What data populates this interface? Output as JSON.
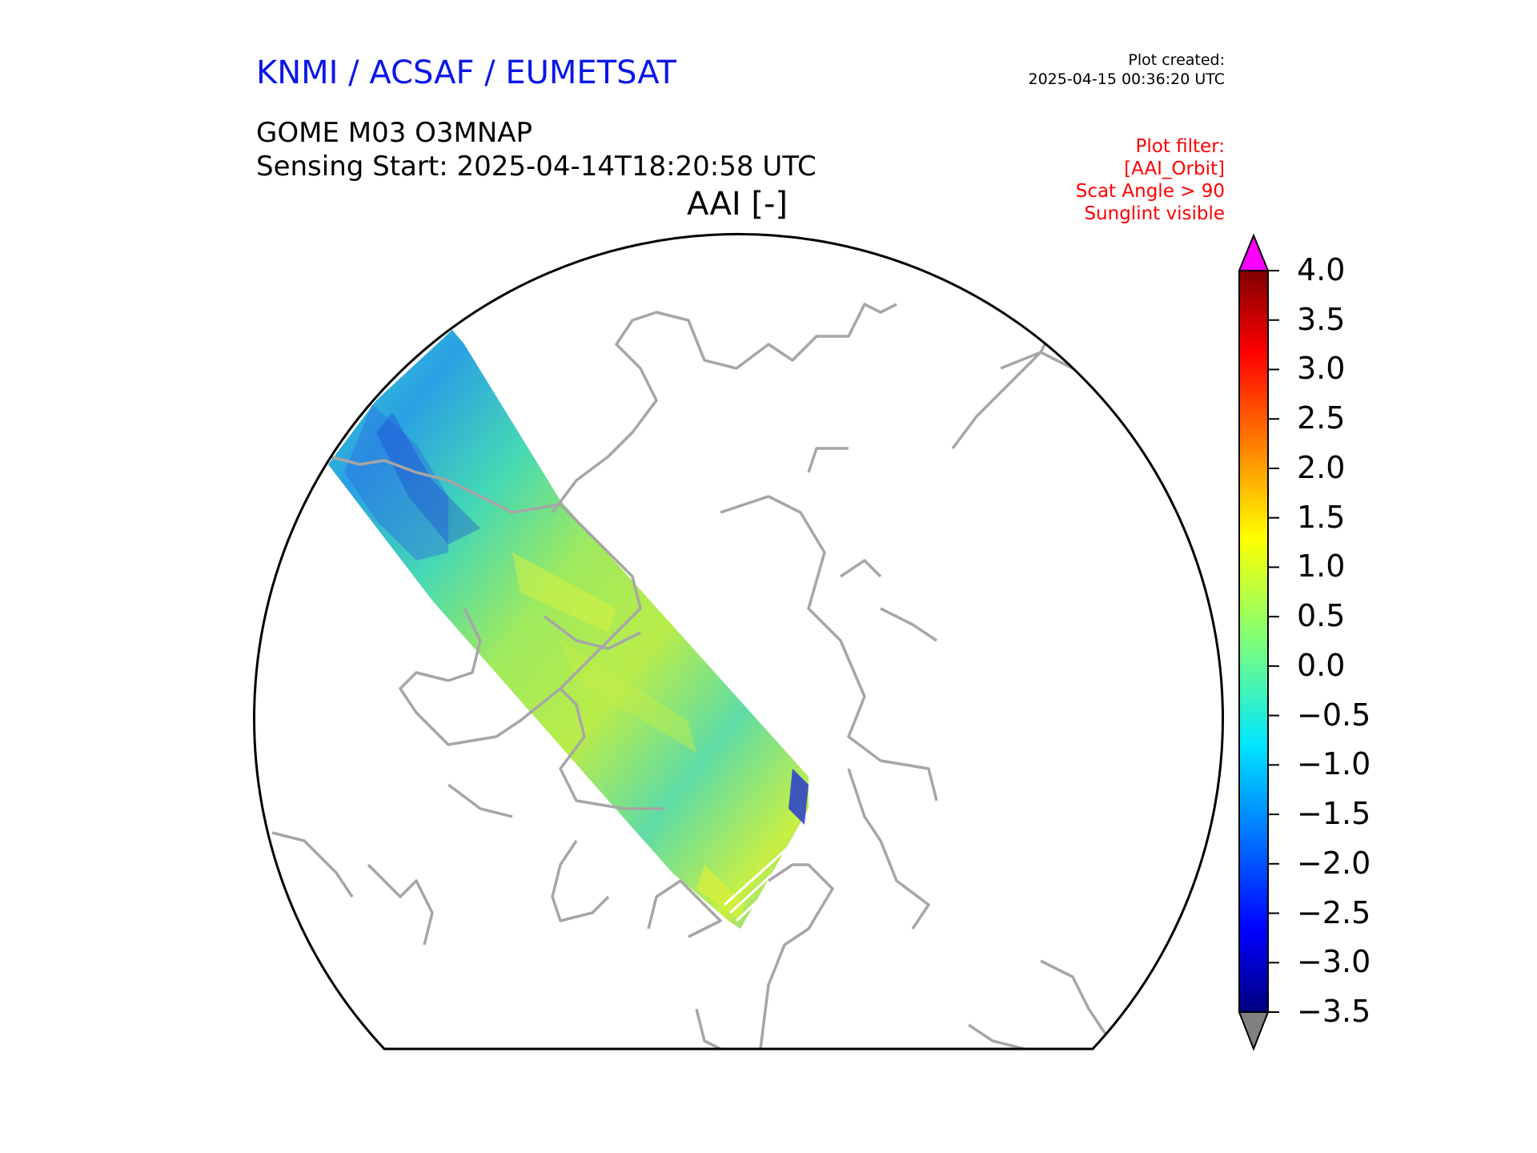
{
  "header": {
    "organization": "KNMI / ACSAF / EUMETSAT",
    "plot_created_label": "Plot created:",
    "plot_created_time": "2025-04-15 00:36:20 UTC",
    "product": "GOME M03 O3MNAP",
    "sensing_start": "Sensing Start: 2025-04-14T18:20:58 UTC",
    "plot_filter": [
      "Plot filter:",
      "[AAI_Orbit]",
      "Scat Angle > 90",
      "Sunglint visible"
    ]
  },
  "map": {
    "title": "AAI [-]",
    "projection": "polar stereographic (north)",
    "coastline_color": "#a6a6a6",
    "swath_dominant_colors": [
      "#3cd9c0",
      "#7fe87c",
      "#c7ef45",
      "#1e64e6"
    ]
  },
  "colorbar": {
    "ticks": [
      "4.0",
      "3.5",
      "3.0",
      "2.5",
      "2.0",
      "1.5",
      "1.0",
      "0.5",
      "0.0",
      "−0.5",
      "−1.0",
      "−1.5",
      "−2.0",
      "−2.5",
      "−3.0",
      "−3.5"
    ],
    "min": -3.5,
    "max": 4.0,
    "colormap": "jet",
    "over_color": "#ff00ff",
    "under_color": "#808080"
  }
}
